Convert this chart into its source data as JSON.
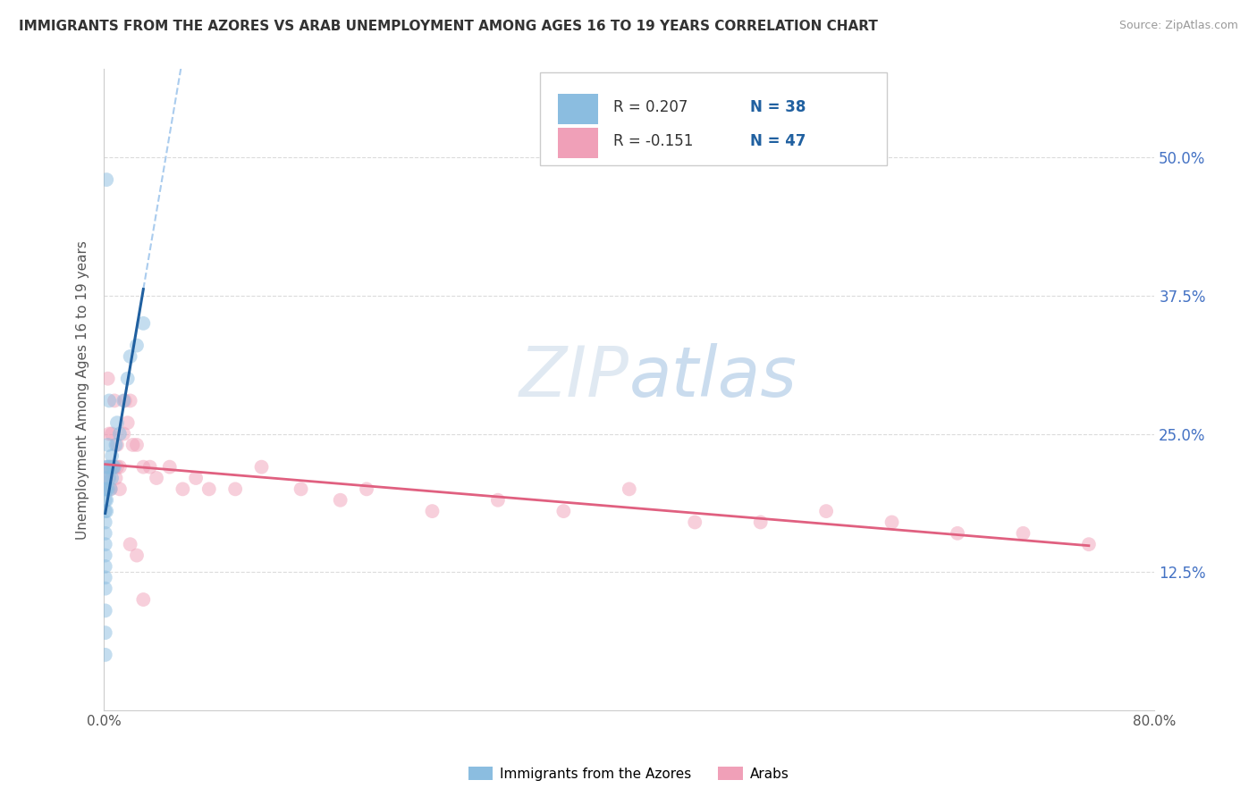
{
  "title": "IMMIGRANTS FROM THE AZORES VS ARAB UNEMPLOYMENT AMONG AGES 16 TO 19 YEARS CORRELATION CHART",
  "source": "Source: ZipAtlas.com",
  "ylabel": "Unemployment Among Ages 16 to 19 years",
  "xlim": [
    0.0,
    0.8
  ],
  "ylim": [
    0.0,
    0.55
  ],
  "ytick_positions": [
    0.125,
    0.25,
    0.375,
    0.5
  ],
  "ytick_labels": [
    "12.5%",
    "25.0%",
    "37.5%",
    "50.0%"
  ],
  "grid_color": "#cccccc",
  "background_color": "#ffffff",
  "watermark_text": "ZIPatlas",
  "blue_color": "#8bbde0",
  "blue_trend_color": "#2060a0",
  "pink_color": "#f0a0b8",
  "pink_trend_color": "#e06080",
  "dashed_color": "#aaccee",
  "marker_size": 130,
  "marker_alpha": 0.5,
  "blue_x": [
    0.001,
    0.001,
    0.001,
    0.001,
    0.001,
    0.001,
    0.001,
    0.001,
    0.002,
    0.002,
    0.002,
    0.002,
    0.002,
    0.003,
    0.003,
    0.003,
    0.004,
    0.004,
    0.005,
    0.005,
    0.006,
    0.006,
    0.007,
    0.008,
    0.009,
    0.01,
    0.012,
    0.015,
    0.018,
    0.02,
    0.025,
    0.03,
    0.001,
    0.001,
    0.001,
    0.001,
    0.001,
    0.001
  ],
  "blue_y": [
    0.2,
    0.19,
    0.21,
    0.18,
    0.17,
    0.15,
    0.12,
    0.07,
    0.22,
    0.2,
    0.19,
    0.18,
    0.48,
    0.24,
    0.22,
    0.2,
    0.21,
    0.28,
    0.22,
    0.2,
    0.21,
    0.23,
    0.22,
    0.22,
    0.24,
    0.26,
    0.25,
    0.28,
    0.3,
    0.32,
    0.33,
    0.35,
    0.16,
    0.14,
    0.13,
    0.11,
    0.09,
    0.05
  ],
  "pink_x": [
    0.001,
    0.002,
    0.003,
    0.003,
    0.004,
    0.005,
    0.005,
    0.006,
    0.007,
    0.008,
    0.009,
    0.01,
    0.01,
    0.012,
    0.012,
    0.015,
    0.016,
    0.018,
    0.02,
    0.022,
    0.025,
    0.03,
    0.035,
    0.04,
    0.05,
    0.06,
    0.07,
    0.08,
    0.1,
    0.12,
    0.15,
    0.18,
    0.2,
    0.25,
    0.3,
    0.35,
    0.4,
    0.45,
    0.5,
    0.55,
    0.6,
    0.65,
    0.7,
    0.75,
    0.02,
    0.025,
    0.03
  ],
  "pink_y": [
    0.2,
    0.21,
    0.3,
    0.22,
    0.25,
    0.22,
    0.2,
    0.25,
    0.22,
    0.28,
    0.21,
    0.24,
    0.22,
    0.22,
    0.2,
    0.25,
    0.28,
    0.26,
    0.28,
    0.24,
    0.24,
    0.22,
    0.22,
    0.21,
    0.22,
    0.2,
    0.21,
    0.2,
    0.2,
    0.22,
    0.2,
    0.19,
    0.2,
    0.18,
    0.19,
    0.18,
    0.2,
    0.17,
    0.17,
    0.18,
    0.17,
    0.16,
    0.16,
    0.15,
    0.15,
    0.14,
    0.1
  ],
  "legend_R1": "R = 0.207",
  "legend_N1": "N = 38",
  "legend_R2": "R = -0.151",
  "legend_N2": "N = 47",
  "legend_color1": "#8bbde0",
  "legend_color2": "#f0a0b8",
  "legend_text_dark": "#333333",
  "legend_text_blue": "#2060a0"
}
